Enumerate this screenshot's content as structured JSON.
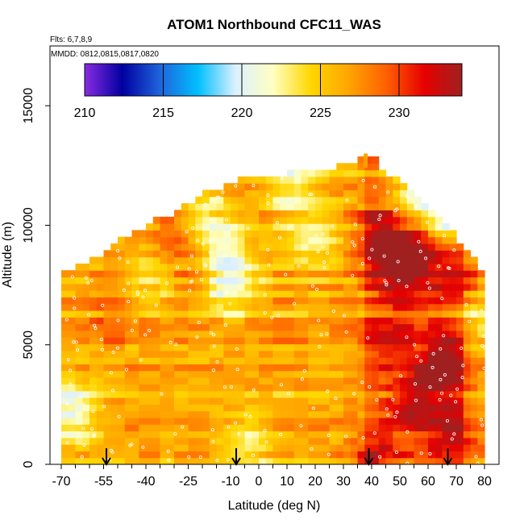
{
  "chart_data": {
    "type": "heatmap",
    "title": "ATOM1 Northbound CFC11_WAS",
    "subtitle_flights": "Flts: 6,7,8,9",
    "subtitle_dates": "MMDD: 0812,0815,0817,0820",
    "xlabel": "Latitude (deg N)",
    "ylabel": "Altitude (m)",
    "xlim": [
      -70,
      80
    ],
    "ylim": [
      0,
      17500
    ],
    "x_ticks": [
      -70,
      -55,
      -40,
      -25,
      -10,
      0,
      10,
      20,
      30,
      40,
      50,
      60,
      70,
      80
    ],
    "x_tick_labels": [
      "-70",
      "-55",
      "-40",
      "-25",
      "-10",
      "0",
      "10",
      "20",
      "30",
      "40",
      "50",
      "60",
      "70",
      "80"
    ],
    "x_minor_ticks": [
      -65,
      -60,
      -50,
      -45,
      -35,
      -30,
      -20,
      -15,
      -5,
      5,
      15,
      25,
      35,
      45,
      55,
      65,
      75
    ],
    "y_ticks": [
      0,
      5000,
      10000,
      15000
    ],
    "y_tick_labels": [
      "0",
      "5000",
      "10000",
      "15000"
    ],
    "colorbar": {
      "range": [
        210,
        234
      ],
      "ticks": [
        210,
        215,
        220,
        225,
        230
      ],
      "tick_labels": [
        "210",
        "215",
        "220",
        "225",
        "230"
      ],
      "colors": [
        "#8a2be2",
        "#0000a0",
        "#1e64dc",
        "#00bfff",
        "#dcf0ff",
        "#ffffc0",
        "#ffd700",
        "#ffa500",
        "#ff6000",
        "#e60000",
        "#a02020"
      ]
    },
    "profile_markers_lat": [
      -54,
      -8,
      39,
      67
    ],
    "ceiling": [
      [
        -70,
        7900
      ],
      [
        -67,
        7900
      ],
      [
        -62,
        8300
      ],
      [
        -58,
        8500
      ],
      [
        -55,
        8800
      ],
      [
        -50,
        9200
      ],
      [
        -45,
        9500
      ],
      [
        -40,
        9800
      ],
      [
        -35,
        10200
      ],
      [
        -30,
        10400
      ],
      [
        -25,
        10800
      ],
      [
        -20,
        11200
      ],
      [
        -15,
        11400
      ],
      [
        -10,
        11700
      ],
      [
        -5,
        11900
      ],
      [
        5,
        12000
      ],
      [
        15,
        12100
      ],
      [
        25,
        12200
      ],
      [
        30,
        12400
      ],
      [
        35,
        12500
      ],
      [
        40,
        12900
      ],
      [
        45,
        12000
      ],
      [
        50,
        11700
      ],
      [
        55,
        11300
      ],
      [
        60,
        10700
      ],
      [
        65,
        10000
      ],
      [
        70,
        9400
      ],
      [
        75,
        8600
      ],
      [
        80,
        7900
      ]
    ],
    "hotspots": [
      {
        "lat": 50,
        "alt": 8400,
        "value": 233
      },
      {
        "lat": 43,
        "alt": 9400,
        "value": 232
      },
      {
        "lat": 60,
        "alt": 9000,
        "value": 231
      },
      {
        "lat": 68,
        "alt": 4300,
        "value": 232
      },
      {
        "lat": 55,
        "alt": 2400,
        "value": 231
      },
      {
        "lat": 72,
        "alt": 7600,
        "value": 231
      },
      {
        "lat": 70,
        "alt": 1200,
        "value": 231
      },
      {
        "lat": 40,
        "alt": 200,
        "value": 231
      },
      {
        "lat": 60,
        "alt": 4000,
        "value": 229
      },
      {
        "lat": 45,
        "alt": 5200,
        "value": 229
      },
      {
        "lat": -32,
        "alt": 9600,
        "value": 229
      },
      {
        "lat": -50,
        "alt": 6600,
        "value": 229
      },
      {
        "lat": -22,
        "alt": 8900,
        "value": 229
      }
    ],
    "coldspots": [
      {
        "lat": 66,
        "alt": 10500,
        "value": 217
      },
      {
        "lat": 55,
        "alt": 11700,
        "value": 220
      },
      {
        "lat": -10,
        "alt": 7800,
        "value": 220
      },
      {
        "lat": -67,
        "alt": 2200,
        "value": 221
      },
      {
        "lat": -18,
        "alt": 9900,
        "value": 221
      },
      {
        "lat": 10,
        "alt": 11800,
        "value": 222
      },
      {
        "lat": -5,
        "alt": 800,
        "value": 223
      },
      {
        "lat": -40,
        "alt": 7600,
        "value": 223
      },
      {
        "lat": 20,
        "alt": 9600,
        "value": 223
      },
      {
        "lat": 78,
        "alt": 6200,
        "value": 222
      }
    ],
    "base_value": 226.5
  }
}
